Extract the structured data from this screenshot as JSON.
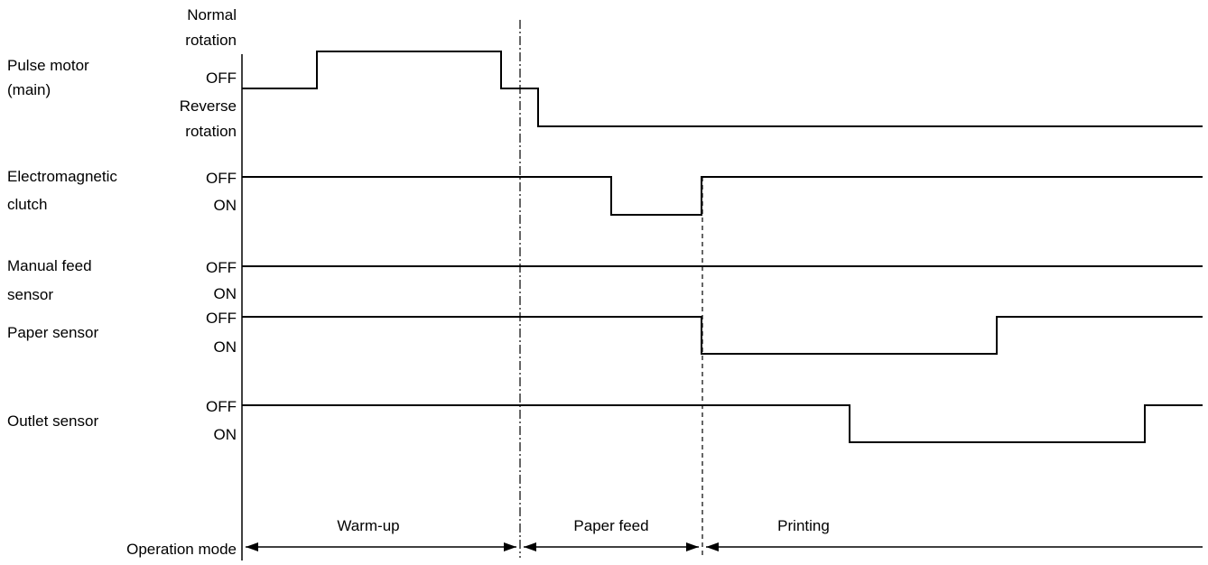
{
  "signals": [
    {
      "id": "pulse-motor",
      "name_lines": [
        "Pulse motor",
        "(main)"
      ],
      "state_labels": [
        "Normal",
        "rotation",
        "OFF",
        "Reverse",
        "rotation"
      ]
    },
    {
      "id": "electromagnetic-clutch",
      "name_lines": [
        "Electromagnetic",
        "clutch"
      ],
      "state_labels": [
        "OFF",
        "ON"
      ]
    },
    {
      "id": "manual-feed-sensor",
      "name_lines": [
        "Manual feed",
        "sensor"
      ],
      "state_labels": [
        "OFF",
        "ON"
      ]
    },
    {
      "id": "paper-sensor",
      "name_lines": [
        "Paper sensor"
      ],
      "state_labels": [
        "OFF",
        "ON"
      ]
    },
    {
      "id": "outlet-sensor",
      "name_lines": [
        "Outlet sensor"
      ],
      "state_labels": [
        "OFF",
        "ON"
      ]
    }
  ],
  "operation_mode": {
    "label": "Operation mode",
    "phases": [
      "Warm-up",
      "Paper feed",
      "Printing"
    ]
  }
}
